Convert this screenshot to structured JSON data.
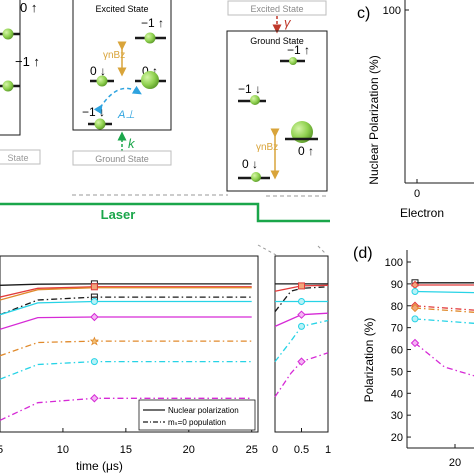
{
  "colors": {
    "green_dot": "#8fd14f",
    "laser_green": "#1aa64a",
    "orange_arrow": "#d9a43a",
    "blue_dashed": "#2ea3df",
    "red_arrow": "#c0392b",
    "black": "#1a1a1a",
    "gray_box": "#bdbdbd",
    "magenta": "#d62ad6",
    "cyan": "#27d3e6",
    "orange": "#e08a2c",
    "red": "#e23b3b"
  },
  "schematic": {
    "left_box": {
      "levels": [
        "0 ↑",
        "−1 ↑"
      ],
      "footer": "State"
    },
    "middle_box": {
      "title": "Excited State",
      "levels": [
        "−1 ↑",
        "0 ↓",
        "0 ↑",
        "−1 ↓"
      ],
      "coupling_label": "A⊥",
      "zeeman_label": "γnBz",
      "pump_label": "k",
      "footer": "Ground State"
    },
    "right_box": {
      "header": "Excited State",
      "decay_label": "γ",
      "title": "Ground State",
      "levels": [
        "−1 ↑",
        "−1 ↓",
        "0 ↑",
        "0 ↓"
      ],
      "zeeman_label": "γnBz"
    }
  },
  "laser_label": "Laser",
  "panel_c": {
    "label": "c)",
    "ylabel": "Nuclear Polarization (%)",
    "ytick": "100",
    "xtick": "0",
    "xlabel": "Electron"
  },
  "panel_d": {
    "label": "(d)",
    "ylabel": "Polarization (%)",
    "xtick": "20"
  },
  "legend": {
    "solid": "Nuclear polarization",
    "dashdot": "mₛ=0 population"
  },
  "chart_data": [
    {
      "type": "line",
      "panel": "bottom-left, laser on",
      "xlabel": "time (μs)",
      "xlim": [
        5,
        25.5
      ],
      "x_ticks": [
        "5",
        "10",
        "15",
        "20",
        "25"
      ],
      "ylim": [
        40,
        100
      ],
      "grid": false,
      "legend_position": "bottom-right",
      "series": [
        {
          "style": "solid",
          "color": "#1a1a1a",
          "points": [
            [
              5,
              90
            ],
            [
              8,
              90.4
            ],
            [
              12.5,
              90.5
            ],
            [
              25,
              90.5
            ]
          ]
        },
        {
          "style": "solid",
          "color": "#e23b3b",
          "points": [
            [
              5,
              86
            ],
            [
              8,
              89
            ],
            [
              12.5,
              89.5
            ],
            [
              25,
              89.5
            ]
          ]
        },
        {
          "style": "solid",
          "color": "#e08a2c",
          "points": [
            [
              5,
              85
            ],
            [
              8,
              88.5
            ],
            [
              12.5,
              89.2
            ],
            [
              25,
              89.2
            ]
          ]
        },
        {
          "style": "dashdot",
          "color": "#1a1a1a",
          "points": [
            [
              5,
              80
            ],
            [
              8,
              85
            ],
            [
              12.5,
              86
            ],
            [
              25,
              86
            ]
          ]
        },
        {
          "style": "solid",
          "color": "#27d3e6",
          "points": [
            [
              5,
              80
            ],
            [
              8,
              84
            ],
            [
              12.5,
              84.5
            ],
            [
              25,
              84.5
            ]
          ]
        },
        {
          "style": "solid",
          "color": "#d62ad6",
          "points": [
            [
              5,
              75
            ],
            [
              8,
              79
            ],
            [
              12.5,
              79.2
            ],
            [
              25,
              79.2
            ]
          ]
        },
        {
          "style": "dashdot",
          "color": "#e08a2c",
          "points": [
            [
              5,
              66
            ],
            [
              8,
              70.5
            ],
            [
              12.5,
              71
            ],
            [
              25,
              71
            ]
          ]
        },
        {
          "style": "dashdot",
          "color": "#27d3e6",
          "points": [
            [
              5,
              58
            ],
            [
              8,
              63
            ],
            [
              12.5,
              64
            ],
            [
              25,
              64
            ]
          ]
        },
        {
          "style": "dashdot",
          "color": "#d62ad6",
          "points": [
            [
              5,
              44
            ],
            [
              8,
              50
            ],
            [
              12.5,
              51.5
            ],
            [
              25,
              51.5
            ]
          ]
        }
      ]
    },
    {
      "type": "line",
      "panel": "bottom-middle, laser off",
      "xlim": [
        0,
        1
      ],
      "x_ticks": [
        "0",
        "0.5",
        "1"
      ],
      "ylim": [
        40,
        100
      ],
      "series": [
        {
          "style": "solid",
          "color": "#1a1a1a",
          "points": [
            [
              0,
              90.5
            ],
            [
              0.5,
              90.5
            ],
            [
              1,
              90.5
            ]
          ]
        },
        {
          "style": "solid",
          "color": "#e23b3b",
          "points": [
            [
              0,
              88
            ],
            [
              0.5,
              89.8
            ],
            [
              1,
              90
            ]
          ]
        },
        {
          "style": "dashdot",
          "color": "#1a1a1a",
          "points": [
            [
              0,
              81
            ],
            [
              0.3,
              88
            ],
            [
              0.5,
              89
            ],
            [
              1,
              89.5
            ]
          ]
        },
        {
          "style": "solid",
          "color": "#27d3e6",
          "points": [
            [
              0,
              84.5
            ],
            [
              0.5,
              84.5
            ],
            [
              1,
              84.5
            ]
          ]
        },
        {
          "style": "solid",
          "color": "#d62ad6",
          "points": [
            [
              0,
              76
            ],
            [
              0.5,
              80
            ],
            [
              1,
              80.5
            ]
          ]
        },
        {
          "style": "dashdot",
          "color": "#27d3e6",
          "points": [
            [
              0,
              64
            ],
            [
              0.3,
              71
            ],
            [
              0.5,
              76
            ],
            [
              1,
              78
            ]
          ]
        },
        {
          "style": "dashdot",
          "color": "#d62ad6",
          "points": [
            [
              0,
              52
            ],
            [
              0.3,
              60
            ],
            [
              0.5,
              64
            ],
            [
              1,
              67
            ]
          ]
        }
      ]
    },
    {
      "type": "line",
      "panel": "(d)",
      "ylabel": "Polarization (%)",
      "x_ticks": [
        "20"
      ],
      "y_ticks": [
        "20",
        "30",
        "40",
        "50",
        "60",
        "70",
        "80",
        "90",
        "100"
      ],
      "ylim": [
        15,
        100
      ],
      "series": [
        {
          "style": "solid",
          "color": "#1a1a1a",
          "points": [
            [
              0,
              90.5
            ],
            [
              1,
              90.5
            ]
          ]
        },
        {
          "style": "solid",
          "color": "#e23b3b",
          "points": [
            [
              0,
              89.5
            ],
            [
              1,
              89.5
            ]
          ]
        },
        {
          "style": "solid",
          "color": "#27d3e6",
          "points": [
            [
              0,
              86.5
            ],
            [
              1,
              86
            ]
          ]
        },
        {
          "style": "dashdot",
          "color": "#e23b3b",
          "points": [
            [
              0,
              80
            ],
            [
              1,
              78
            ]
          ]
        },
        {
          "style": "dashdot",
          "color": "#e08a2c",
          "points": [
            [
              0,
              79
            ],
            [
              1,
              77
            ]
          ]
        },
        {
          "style": "dashdot",
          "color": "#27d3e6",
          "points": [
            [
              0,
              74
            ],
            [
              1,
              72
            ]
          ]
        },
        {
          "style": "dashdot",
          "color": "#d62ad6",
          "points": [
            [
              0,
              63
            ],
            [
              0.5,
              52
            ],
            [
              1,
              48
            ]
          ]
        }
      ]
    }
  ]
}
